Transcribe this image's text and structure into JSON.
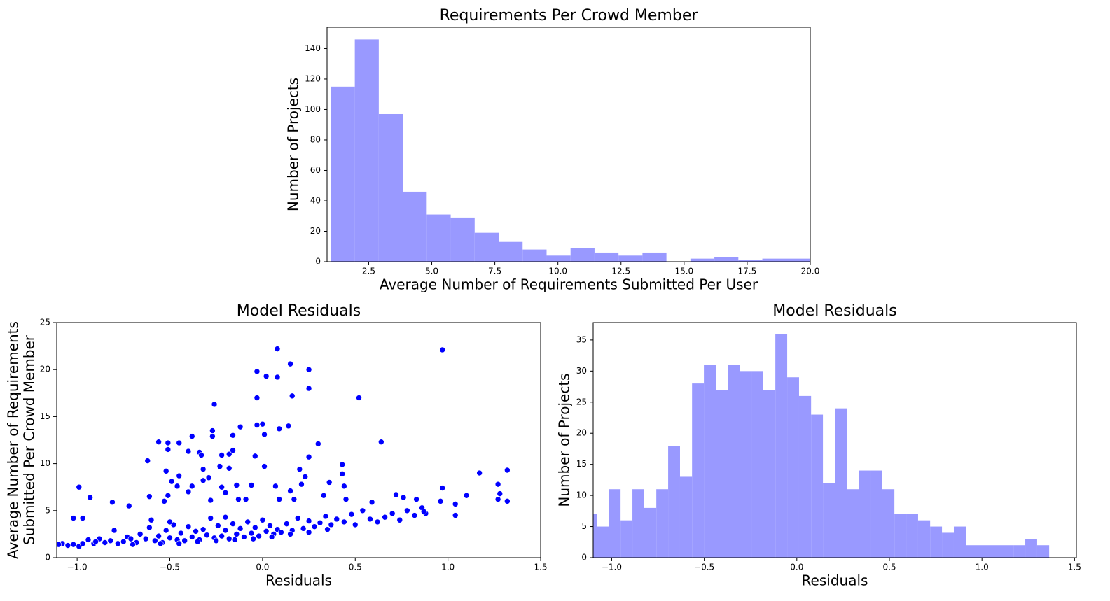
{
  "chart_data": [
    {
      "type": "histogram",
      "title": "Requirements Per Crowd Member",
      "xlabel": "Average Number of Requirements Submitted Per User",
      "ylabel": [
        "Number of Projects"
      ],
      "bins": [
        1.0,
        1.95,
        2.9,
        3.85,
        4.8,
        5.75,
        6.7,
        7.65,
        8.6,
        9.55,
        10.5,
        11.45,
        12.4,
        13.35,
        14.3,
        15.25,
        16.2,
        17.15,
        18.1,
        19.05,
        20.0
      ],
      "values": [
        115,
        146,
        97,
        46,
        31,
        29,
        19,
        13,
        8,
        4,
        9,
        6,
        4,
        6,
        0,
        2,
        3,
        1,
        2,
        2
      ],
      "color": "#9999ff",
      "xlim": [
        0.85,
        20.0
      ],
      "ylim": [
        0,
        154
      ],
      "xticks": [
        2.5,
        {
          "value": 5,
          "label": "5.0"
        },
        7.5,
        {
          "value": 10,
          "label": "10.0"
        },
        12.5,
        {
          "value": 15,
          "label": "15.0"
        },
        17.5,
        {
          "value": 20,
          "label": "20.0"
        }
      ],
      "yticks": [
        0,
        20,
        40,
        60,
        80,
        100,
        120,
        140
      ]
    },
    {
      "type": "scatter",
      "title": "Model Residuals",
      "xlabel": "Residuals",
      "ylabel": [
        "Average Number of Requirements",
        "Submitted Per Crowd Member"
      ],
      "x": [
        0.08,
        0.97,
        0.15,
        0.25,
        -0.03,
        0.02,
        0.08,
        0.25,
        -0.03,
        0.16,
        0.52,
        -0.26,
        -0.03,
        0.0,
        0.14,
        -0.12,
        0.09,
        -0.27,
        -0.27,
        0.01,
        -0.16,
        -0.38,
        -0.56,
        -0.51,
        -0.45,
        -0.34,
        0.3,
        0.64,
        -0.4,
        -0.51,
        -0.33,
        -0.22,
        -0.18,
        -0.16,
        -0.04,
        0.25,
        -0.62,
        -0.23,
        -0.18,
        -0.32,
        0.01,
        0.43,
        0.2,
        1.17,
        1.32,
        -0.52,
        -0.45,
        -0.29,
        -0.49,
        -0.32,
        0.36,
        0.43,
        0.23,
        1.27,
        -0.99,
        -0.46,
        -0.38,
        -0.22,
        -0.14,
        -0.06,
        0.07,
        0.15,
        0.21,
        0.44,
        0.97,
        -0.93,
        -0.81,
        -0.72,
        -0.61,
        -0.53,
        -0.51,
        -0.4,
        -0.28,
        -0.2,
        -0.13,
        -0.09,
        0.09,
        0.17,
        0.33,
        0.45,
        0.59,
        0.72,
        0.83,
        0.96,
        1.04,
        1.1,
        1.27,
        1.32,
        1.28,
        1.04,
        0.88,
        0.86,
        0.76,
        -1.08,
        -1.05,
        -1.02,
        -0.99,
        -0.97,
        -1.02,
        -0.97,
        -0.94,
        -0.91,
        -0.88,
        -0.85,
        -0.82,
        -0.8,
        -0.78,
        -0.75,
        -0.73,
        -0.71,
        -0.68,
        -0.66,
        -0.63,
        -0.61,
        -0.58,
        -0.56,
        -0.54,
        -0.52,
        -0.5,
        -0.48,
        -0.46,
        -0.44,
        -0.42,
        -0.4,
        -0.38,
        -0.36,
        -0.34,
        -0.32,
        -0.3,
        -0.28,
        -0.26,
        -0.24,
        -0.22,
        -0.2,
        -0.18,
        -0.16,
        -0.14,
        -0.12,
        -0.1,
        -0.08,
        -0.06,
        -0.04,
        -0.02,
        0.0,
        0.02,
        0.04,
        0.06,
        0.08,
        0.1,
        0.13,
        0.16,
        0.19,
        0.22,
        0.25,
        0.28,
        0.31,
        0.34,
        0.37,
        0.4,
        0.44,
        0.48,
        0.5,
        0.54,
        0.58,
        0.62,
        0.66,
        0.7,
        0.74,
        0.78,
        0.82,
        0.87,
        -0.9,
        -0.7,
        -0.55,
        -0.45,
        -0.35,
        -0.25,
        -0.15,
        -0.05,
        0.05,
        0.15,
        0.25,
        0.35,
        -1.1,
        -0.6,
        -0.5,
        -0.2
      ],
      "values": [
        22.2,
        22.1,
        20.6,
        20.0,
        19.8,
        19.3,
        19.2,
        18.0,
        17.0,
        17.2,
        17.0,
        16.3,
        14.1,
        14.2,
        14.0,
        13.9,
        13.7,
        13.5,
        12.9,
        13.1,
        13.0,
        12.9,
        12.3,
        12.2,
        12.2,
        11.2,
        12.1,
        12.3,
        11.3,
        11.5,
        10.9,
        10.9,
        11.0,
        11.4,
        10.8,
        10.7,
        10.3,
        9.7,
        9.5,
        9.4,
        9.7,
        9.9,
        9.4,
        9.0,
        9.3,
        9.2,
        8.7,
        8.5,
        8.1,
        8.2,
        8.0,
        8.9,
        8.6,
        7.8,
        7.5,
        7.6,
        7.6,
        7.5,
        7.7,
        7.7,
        7.6,
        7.1,
        7.8,
        7.6,
        7.4,
        6.4,
        5.9,
        5.5,
        6.5,
        6.0,
        6.6,
        7.0,
        6.1,
        6.9,
        6.2,
        6.2,
        6.2,
        6.2,
        6.6,
        6.2,
        5.9,
        6.7,
        6.2,
        6.0,
        5.7,
        6.6,
        6.2,
        6.0,
        6.8,
        4.5,
        4.7,
        5.3,
        6.4,
        1.5,
        1.3,
        1.4,
        1.2,
        1.5,
        4.2,
        4.2,
        1.9,
        1.5,
        2.0,
        1.6,
        1.8,
        2.9,
        1.5,
        1.7,
        2.2,
        2.0,
        1.6,
        2.5,
        2.0,
        3.2,
        1.8,
        2.3,
        1.6,
        2.9,
        2.1,
        3.5,
        1.9,
        2.6,
        1.8,
        3.3,
        2.2,
        2.8,
        1.9,
        3.0,
        2.4,
        4.2,
        2.1,
        3.4,
        2.3,
        2.9,
        2.0,
        3.6,
        2.5,
        3.1,
        2.2,
        3.8,
        2.6,
        3.2,
        2.3,
        4.0,
        2.8,
        3.4,
        2.5,
        3.0,
        2.7,
        3.6,
        2.9,
        4.2,
        3.1,
        3.9,
        3.3,
        3.7,
        4.4,
        3.5,
        4.1,
        3.8,
        4.6,
        3.5,
        5.0,
        4.1,
        3.8,
        4.3,
        4.7,
        4.0,
        5.0,
        4.5,
        4.9,
        1.7,
        1.4,
        1.5,
        1.5,
        1.7,
        1.8,
        1.9,
        2.0,
        2.2,
        2.5,
        2.7,
        3.0,
        1.4,
        4.0,
        3.8,
        4.3
      ],
      "color": "#0000ff",
      "xlim": [
        -1.11,
        1.5
      ],
      "ylim": [
        0,
        25
      ],
      "xticks": [
        {
          "value": -1,
          "label": "−1.0"
        },
        {
          "value": -0.5,
          "label": "−0.5"
        },
        {
          "value": 0,
          "label": "0.0"
        },
        0.5,
        {
          "value": 1,
          "label": "1.0"
        },
        1.5
      ],
      "yticks": [
        0,
        5,
        10,
        15,
        20,
        25
      ]
    },
    {
      "type": "histogram",
      "title": "Model Residuals",
      "xlabel": "Residuals",
      "ylabel": [
        "Number of Projects"
      ],
      "bins": [
        -1.145,
        -1.081,
        -1.016,
        -0.952,
        -0.888,
        -0.824,
        -0.759,
        -0.695,
        -0.631,
        -0.566,
        -0.502,
        -0.438,
        -0.373,
        -0.309,
        -0.245,
        -0.181,
        -0.116,
        -0.052,
        0.012,
        0.077,
        0.141,
        0.205,
        0.27,
        0.334,
        0.398,
        0.462,
        0.527,
        0.591,
        0.655,
        0.72,
        0.784,
        0.848,
        0.913,
        0.977,
        1.041,
        1.105,
        1.17,
        1.234,
        1.298,
        1.363
      ],
      "values": [
        7,
        5,
        11,
        6,
        11,
        8,
        11,
        18,
        13,
        28,
        31,
        27,
        31,
        30,
        30,
        27,
        36,
        29,
        26,
        23,
        12,
        24,
        11,
        14,
        14,
        11,
        7,
        7,
        6,
        5,
        4,
        5,
        2,
        2,
        2,
        2,
        2,
        3,
        2
      ],
      "color": "#9999ff",
      "xlim": [
        -1.1,
        1.51
      ],
      "ylim": [
        0,
        37.8
      ],
      "xticks": [
        {
          "value": -1,
          "label": "−1.0"
        },
        {
          "value": -0.5,
          "label": "−0.5"
        },
        {
          "value": 0,
          "label": "0.0"
        },
        0.5,
        {
          "value": 1,
          "label": "1.0"
        },
        1.5
      ],
      "yticks": [
        0,
        5,
        10,
        15,
        20,
        25,
        30,
        35
      ]
    }
  ]
}
